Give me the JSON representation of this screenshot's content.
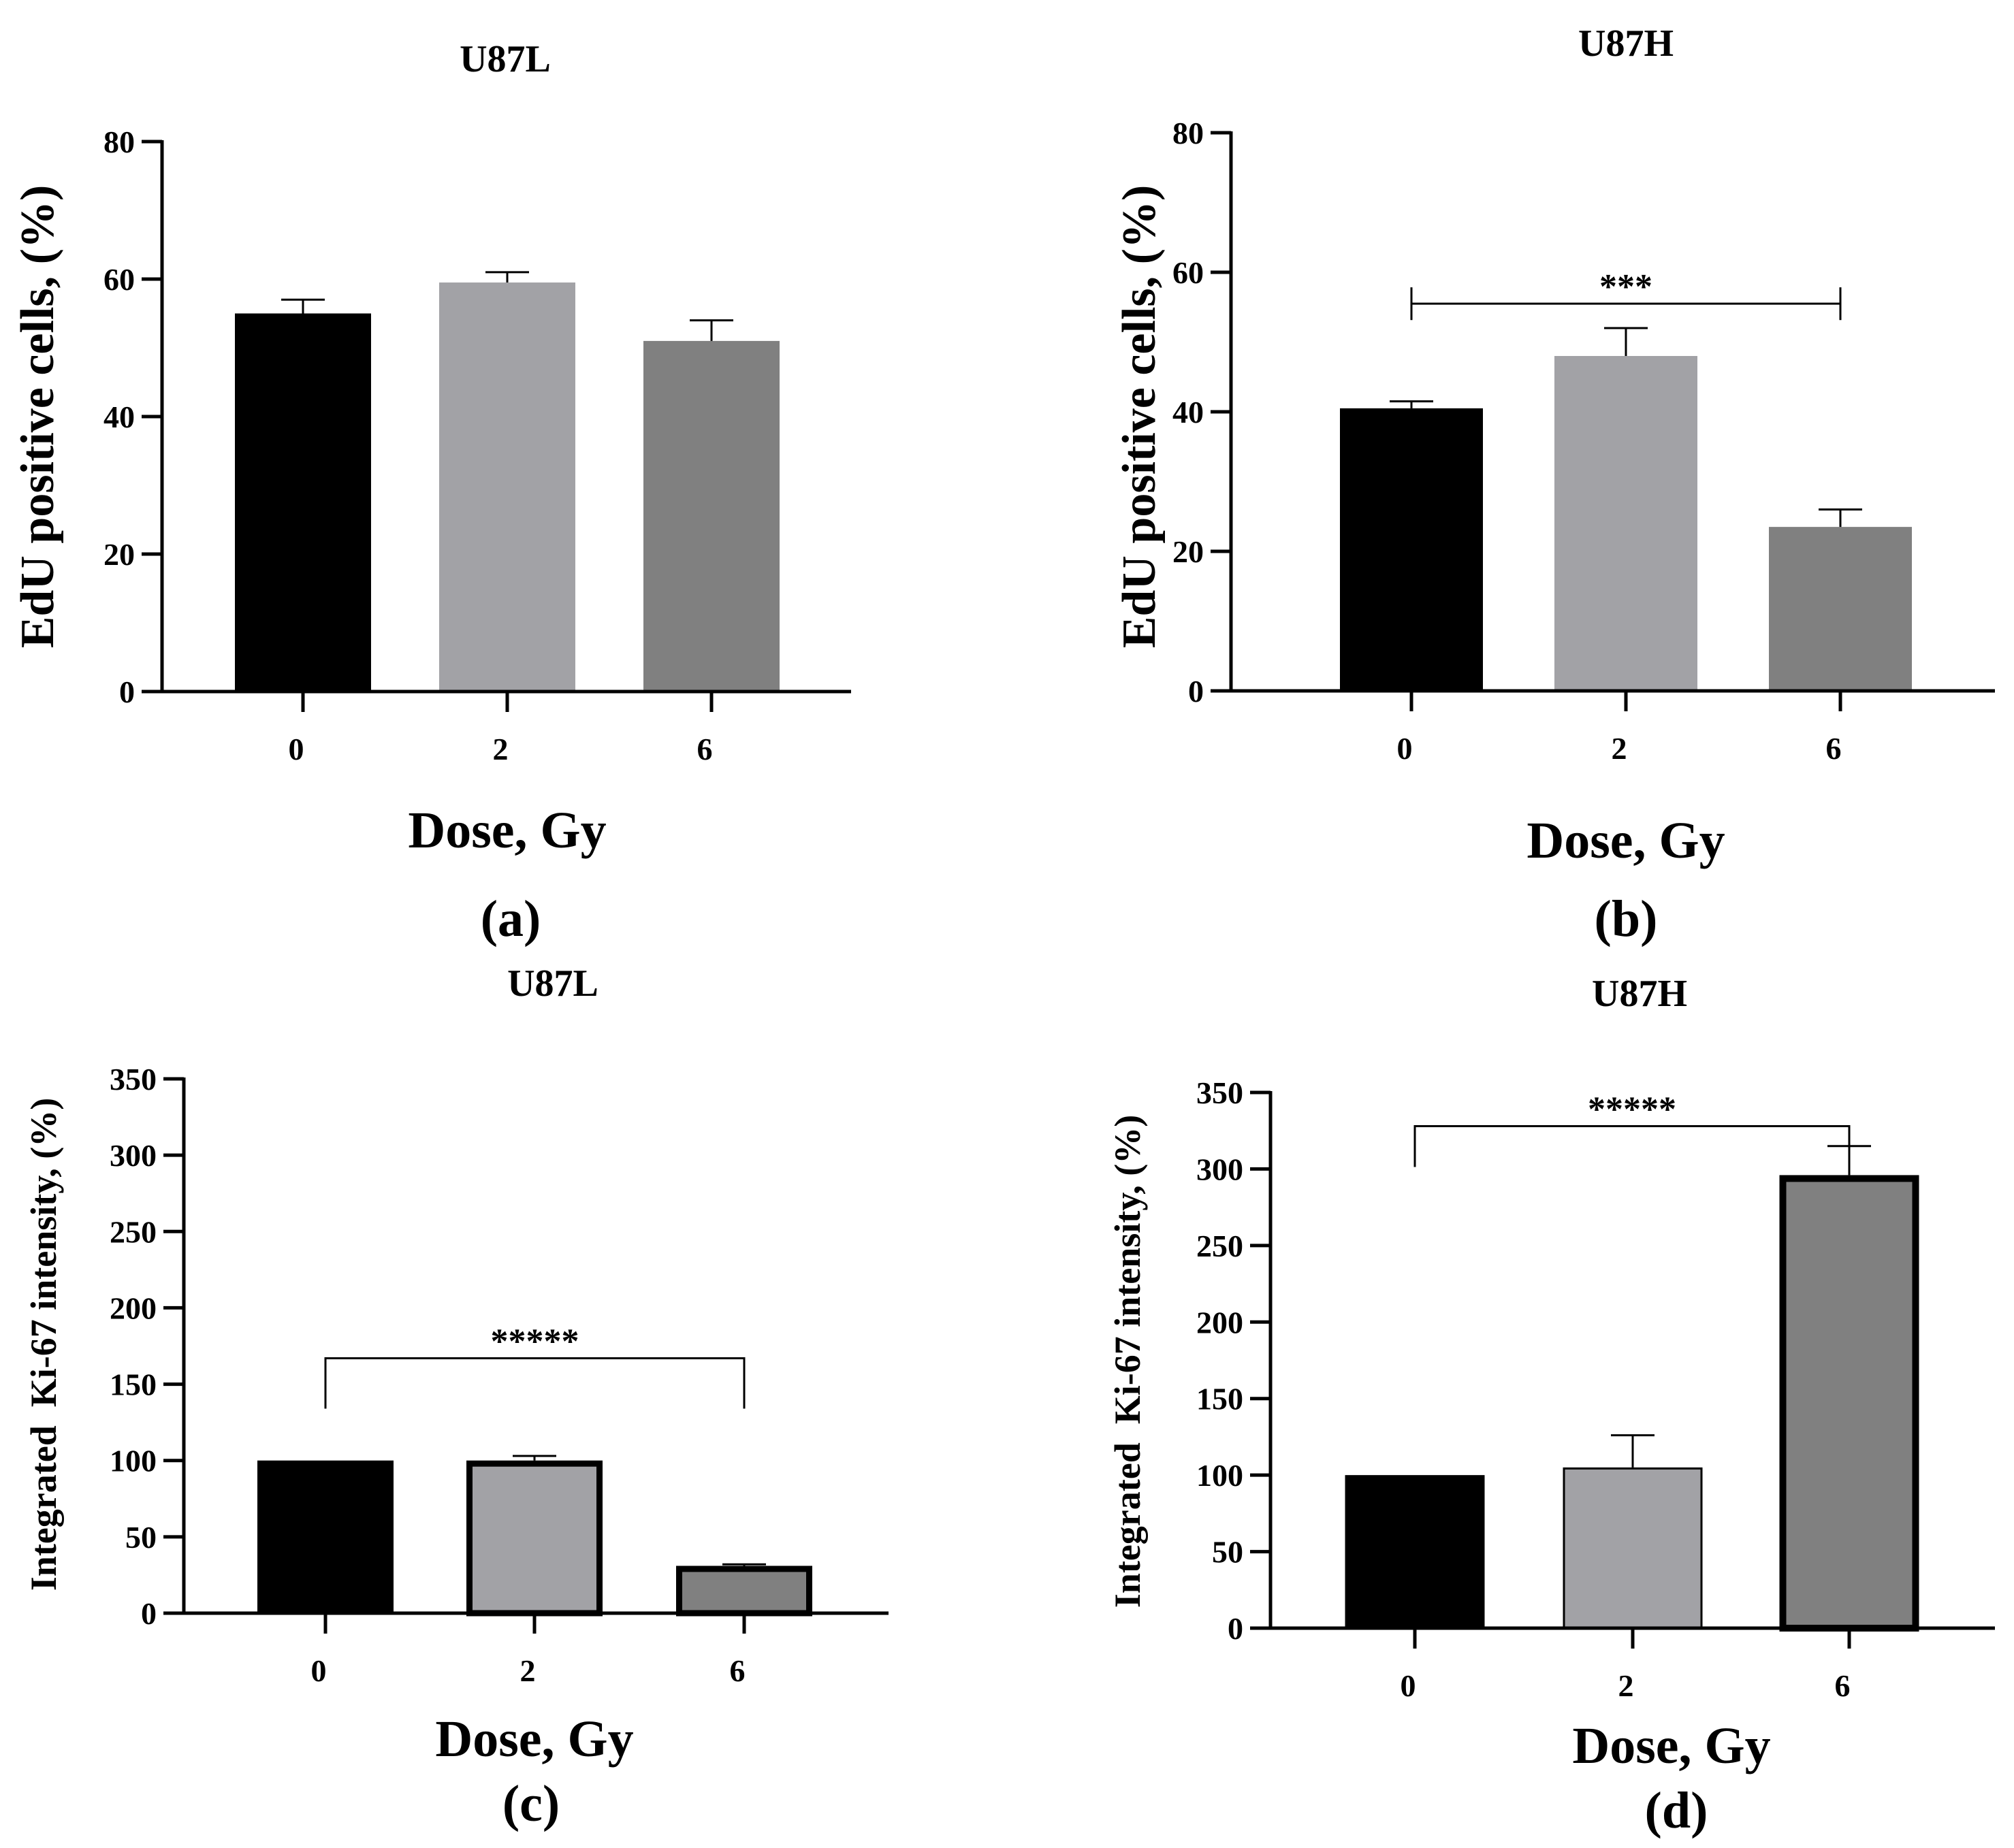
{
  "figure": {
    "background": "#ffffff"
  },
  "colors": {
    "bar_0": "#000000",
    "bar_2": "#a2a2a6",
    "bar_6": "#808080",
    "axis": "#000000"
  },
  "chart_data": [
    {
      "id": "a",
      "type": "bar",
      "title": "U87L",
      "panel_label": "(a)",
      "xlabel": "Dose, Gy",
      "ylabel": "EdU positive cells, (%)",
      "categories": [
        "0",
        "2",
        "6"
      ],
      "values": [
        55,
        59.5,
        51
      ],
      "errors": [
        2,
        1.5,
        3
      ],
      "ylim": [
        0,
        80
      ],
      "yticks": [
        0,
        20,
        40,
        60,
        80
      ],
      "ytick_labels": [
        "0",
        "20",
        "40",
        "60",
        "80"
      ],
      "significance": []
    },
    {
      "id": "b",
      "type": "bar",
      "title": "U87H",
      "panel_label": "(b)",
      "xlabel": "Dose, Gy",
      "ylabel": "EdU positive cells, (%)",
      "categories": [
        "0",
        "2",
        "6"
      ],
      "values": [
        40.5,
        48,
        23.5
      ],
      "errors": [
        1,
        4,
        2.5
      ],
      "ylim": [
        0,
        80
      ],
      "yticks": [
        0,
        20,
        40,
        60,
        80
      ],
      "ytick_labels": [
        "0",
        "20",
        "40",
        "60",
        "80"
      ],
      "significance": [
        {
          "from": "0",
          "to": "6",
          "label": "***",
          "level": 55.5
        }
      ]
    },
    {
      "id": "c",
      "type": "bar",
      "title": "U87L",
      "panel_label": "(c)",
      "xlabel": "Dose, Gy",
      "ylabel": "Integrated  Ki-67 intensity, (%)",
      "categories": [
        "0",
        "2",
        "6"
      ],
      "values": [
        100,
        100,
        31
      ],
      "errors": [
        0,
        3,
        1
      ],
      "ylim": [
        0,
        350
      ],
      "yticks": [
        0,
        50,
        100,
        150,
        200,
        250,
        300,
        350
      ],
      "ytick_labels": [
        "0",
        "50",
        "100",
        "150",
        "200",
        "250",
        "300",
        "350"
      ],
      "significance": [
        {
          "from": "0",
          "to": "6",
          "label": "*****",
          "level": 167
        }
      ]
    },
    {
      "id": "d",
      "type": "bar",
      "title": "U87H",
      "panel_label": "(d)",
      "xlabel": "Dose, Gy",
      "ylabel": "Integrated  Ki-67 intensity, (%)",
      "categories": [
        "0",
        "2",
        "6"
      ],
      "values": [
        100,
        105,
        296
      ],
      "errors": [
        0,
        21,
        19
      ],
      "ylim": [
        0,
        350
      ],
      "yticks": [
        0,
        50,
        100,
        150,
        200,
        250,
        300,
        350
      ],
      "ytick_labels": [
        "0",
        "50",
        "100",
        "150",
        "200",
        "250",
        "300",
        "350"
      ],
      "significance": [
        {
          "from": "0",
          "to": "6",
          "label": "*****",
          "level": 328
        }
      ]
    }
  ]
}
